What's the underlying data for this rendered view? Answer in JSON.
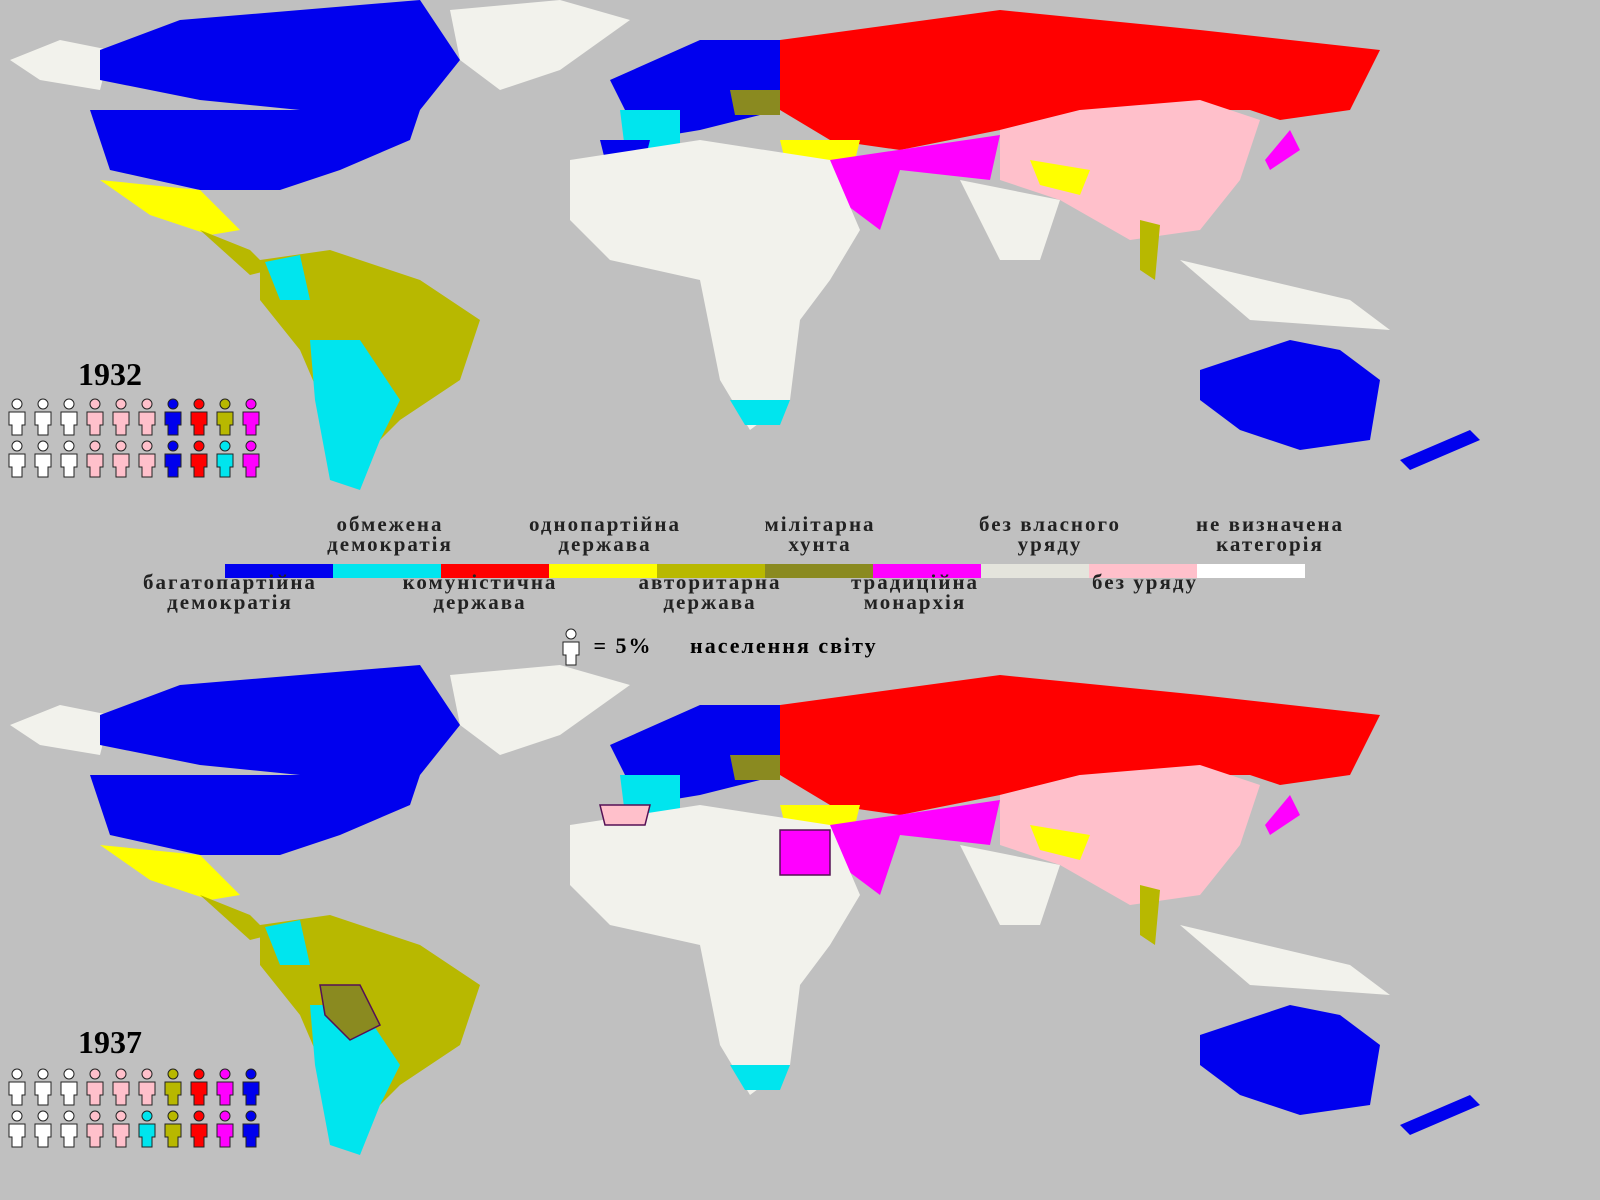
{
  "maps": [
    {
      "year": "1932",
      "population_figures": [
        9,
        9,
        9,
        8,
        8,
        8,
        0,
        2,
        4,
        6,
        9,
        9,
        9,
        8,
        8,
        8,
        0,
        2,
        1,
        6
      ]
    },
    {
      "year": "1937",
      "population_figures": [
        9,
        9,
        9,
        8,
        8,
        8,
        4,
        2,
        6,
        0,
        9,
        9,
        9,
        8,
        8,
        1,
        4,
        2,
        6,
        0
      ]
    }
  ],
  "legend": {
    "categories": [
      {
        "label": "багатопартійна демократія",
        "color": "#0000ee"
      },
      {
        "label": "обмежена демократія",
        "color": "#00e5ee"
      },
      {
        "label": "комуністична держава",
        "color": "#ff0000"
      },
      {
        "label": "однопартійна держава",
        "color": "#ffff00"
      },
      {
        "label": "авторитарна держава",
        "color": "#b8b800"
      },
      {
        "label": "мілітарна хунта",
        "color": "#8a8a20"
      },
      {
        "label": "традиційна монархія",
        "color": "#ff00ff"
      },
      {
        "label": "без власного уряду",
        "color": "#e4e4dc"
      },
      {
        "label": "без уряду",
        "color": "#ffc0cb"
      },
      {
        "label": "не визначена категорія",
        "color": "#ffffff"
      }
    ],
    "key_value": "= 5%",
    "key_label": "населення світу"
  }
}
